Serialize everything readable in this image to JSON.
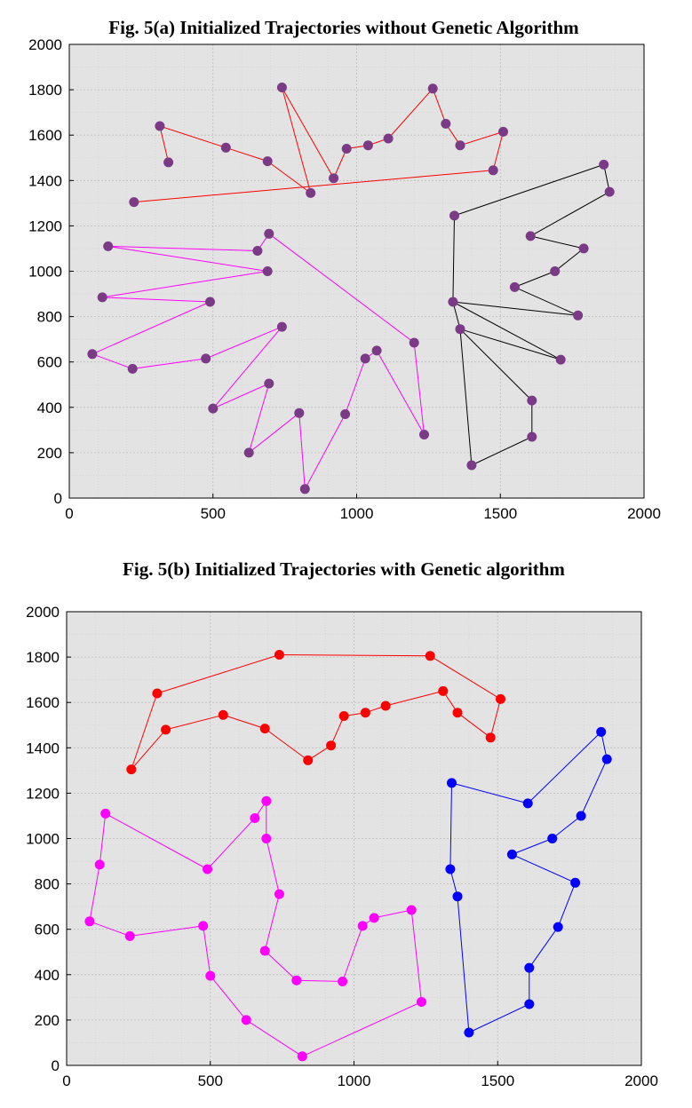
{
  "chart_data": [
    {
      "type": "line",
      "title": "Fig. 5(a) Initialized Trajectories without Genetic Algorithm",
      "xlabel": "",
      "ylabel": "",
      "xlim": [
        0,
        2000
      ],
      "ylim": [
        0,
        2000
      ],
      "x_ticks": [
        "0",
        "500",
        "1000",
        "1500",
        "2000"
      ],
      "y_ticks": [
        "0",
        "200",
        "400",
        "600",
        "800",
        "1000",
        "1200",
        "1400",
        "1600",
        "1800",
        "2000"
      ],
      "grid": true,
      "point_color": "#7a3a86",
      "series": [
        {
          "color": "#ff0000",
          "points": [
            [
              225,
              1305
            ],
            [
              1475,
              1445
            ],
            [
              1510,
              1615
            ],
            [
              1360,
              1555
            ],
            [
              1310,
              1650
            ],
            [
              1265,
              1805
            ],
            [
              1110,
              1585
            ],
            [
              1040,
              1555
            ],
            [
              965,
              1540
            ],
            [
              920,
              1410
            ],
            [
              740,
              1810
            ],
            [
              840,
              1345
            ],
            [
              690,
              1485
            ],
            [
              545,
              1545
            ],
            [
              315,
              1640
            ],
            [
              345,
              1480
            ]
          ]
        },
        {
          "color": "#ff00ff",
          "points": [
            [
              695,
              1165
            ],
            [
              655,
              1090
            ],
            [
              135,
              1110
            ],
            [
              690,
              1000
            ],
            [
              115,
              885
            ],
            [
              490,
              865
            ],
            [
              80,
              635
            ],
            [
              220,
              570
            ],
            [
              475,
              615
            ],
            [
              740,
              755
            ],
            [
              500,
              395
            ],
            [
              695,
              505
            ],
            [
              625,
              200
            ],
            [
              800,
              375
            ],
            [
              820,
              40
            ],
            [
              960,
              370
            ],
            [
              1030,
              615
            ],
            [
              1070,
              650
            ],
            [
              1235,
              280
            ],
            [
              1200,
              685
            ],
            [
              695,
              1165
            ]
          ]
        },
        {
          "color": "#000000",
          "points": [
            [
              1340,
              1245
            ],
            [
              1860,
              1470
            ],
            [
              1880,
              1350
            ],
            [
              1605,
              1155
            ],
            [
              1790,
              1100
            ],
            [
              1690,
              1000
            ],
            [
              1550,
              930
            ],
            [
              1770,
              805
            ],
            [
              1335,
              865
            ],
            [
              1710,
              610
            ],
            [
              1360,
              745
            ],
            [
              1610,
              430
            ],
            [
              1610,
              270
            ],
            [
              1400,
              145
            ],
            [
              1360,
              745
            ],
            [
              1335,
              865
            ],
            [
              1340,
              1245
            ]
          ]
        }
      ]
    },
    {
      "type": "line",
      "title": "Fig. 5(b) Initialized Trajectories with Genetic algorithm",
      "xlabel": "",
      "ylabel": "",
      "xlim": [
        0,
        2000
      ],
      "ylim": [
        0,
        2000
      ],
      "x_ticks": [
        "0",
        "500",
        "1000",
        "1500",
        "2000"
      ],
      "y_ticks": [
        "0",
        "200",
        "400",
        "600",
        "800",
        "1000",
        "1200",
        "1400",
        "1600",
        "1800",
        "2000"
      ],
      "grid": true,
      "series": [
        {
          "color": "#ff0000",
          "points": [
            [
              225,
              1305
            ],
            [
              315,
              1640
            ],
            [
              740,
              1810
            ],
            [
              1265,
              1805
            ],
            [
              1510,
              1615
            ],
            [
              1475,
              1445
            ],
            [
              1360,
              1555
            ],
            [
              1310,
              1650
            ],
            [
              1110,
              1585
            ],
            [
              1040,
              1555
            ],
            [
              965,
              1540
            ],
            [
              920,
              1410
            ],
            [
              840,
              1345
            ],
            [
              690,
              1485
            ],
            [
              545,
              1545
            ],
            [
              345,
              1480
            ],
            [
              225,
              1305
            ]
          ]
        },
        {
          "color": "#ff00ff",
          "points": [
            [
              1235,
              280
            ],
            [
              1200,
              685
            ],
            [
              1070,
              650
            ],
            [
              1030,
              615
            ],
            [
              960,
              370
            ],
            [
              800,
              375
            ],
            [
              690,
              505
            ],
            [
              740,
              755
            ],
            [
              695,
              1000
            ],
            [
              695,
              1165
            ],
            [
              655,
              1090
            ],
            [
              490,
              865
            ],
            [
              135,
              1110
            ],
            [
              115,
              885
            ],
            [
              80,
              635
            ],
            [
              220,
              570
            ],
            [
              475,
              615
            ],
            [
              500,
              395
            ],
            [
              625,
              200
            ],
            [
              820,
              40
            ],
            [
              1235,
              280
            ]
          ]
        },
        {
          "color": "#0000ff",
          "points": [
            [
              1340,
              1245
            ],
            [
              1605,
              1155
            ],
            [
              1860,
              1470
            ],
            [
              1880,
              1350
            ],
            [
              1790,
              1100
            ],
            [
              1690,
              1000
            ],
            [
              1550,
              930
            ],
            [
              1770,
              805
            ],
            [
              1710,
              610
            ],
            [
              1610,
              430
            ],
            [
              1610,
              270
            ],
            [
              1400,
              145
            ],
            [
              1360,
              745
            ],
            [
              1335,
              865
            ],
            [
              1340,
              1245
            ]
          ]
        }
      ]
    }
  ]
}
